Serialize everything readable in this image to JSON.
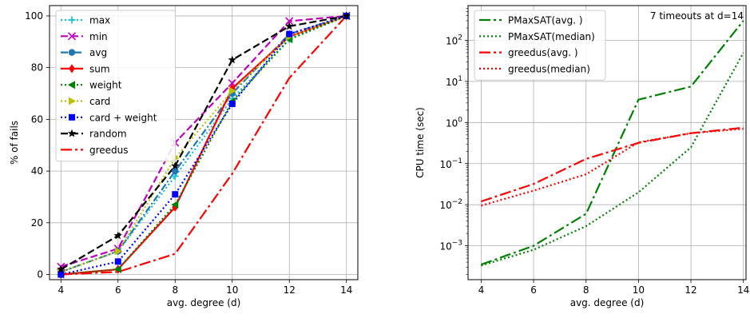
{
  "chart_data": [
    {
      "type": "line",
      "title": "",
      "xlabel": "avg. degree (d)",
      "ylabel": "% of fails",
      "xlim": [
        3.6,
        14.4
      ],
      "ylim": [
        -2,
        104
      ],
      "yscale": "linear",
      "xticks": [
        4,
        6,
        8,
        10,
        12,
        14
      ],
      "yticks": [
        0,
        20,
        40,
        60,
        80,
        100
      ],
      "grid": true,
      "legend_position": "top-left",
      "x": [
        4,
        6,
        8,
        10,
        12,
        14
      ],
      "series": [
        {
          "name": "max",
          "color": "#17becf",
          "dash": "2,3",
          "marker": "plus",
          "values": [
            1,
            9,
            38,
            68,
            91,
            100
          ]
        },
        {
          "name": "min",
          "color": "#bf00bf",
          "dash": "9,4",
          "marker": "x",
          "values": [
            3,
            10,
            51,
            74,
            98,
            100
          ]
        },
        {
          "name": "avg",
          "color": "#1f77b4",
          "dash": "9,3,2,3",
          "marker": "circle",
          "values": [
            1,
            9,
            40,
            70,
            93,
            100
          ]
        },
        {
          "name": "sum",
          "color": "#ff0000",
          "dash": "",
          "marker": "diamond",
          "values": [
            0,
            2,
            26,
            72,
            92,
            100
          ]
        },
        {
          "name": "weight",
          "color": "#008000",
          "dash": "2,3",
          "marker": "triangle-left",
          "values": [
            0,
            2,
            27,
            67,
            91,
            100
          ]
        },
        {
          "name": "card",
          "color": "#bfbf00",
          "dash": "2,3",
          "marker": "triangle-right",
          "values": [
            1,
            9,
            45,
            71,
            92,
            100
          ]
        },
        {
          "name": "card + weight",
          "color": "#0000ff",
          "dash": "2,3",
          "marker": "square",
          "values": [
            0,
            5,
            31,
            66,
            93,
            100
          ]
        },
        {
          "name": "random",
          "color": "#000000",
          "dash": "9,4",
          "marker": "star",
          "values": [
            2,
            15,
            42,
            83,
            96,
            100
          ]
        },
        {
          "name": "greedus",
          "color": "#ff0000",
          "dash": "14,4,3,4",
          "marker": "none",
          "values": [
            0,
            1,
            8,
            39,
            76,
            100
          ]
        }
      ]
    },
    {
      "type": "line",
      "title": "",
      "annotation": "7 timeouts at d=14",
      "xlabel": "avg. degree (d)",
      "ylabel": "CPU time (sec)",
      "xlim": [
        3.5,
        14.1
      ],
      "ylim": [
        0.00015,
        700
      ],
      "yscale": "log",
      "xticks": [
        4,
        6,
        8,
        10,
        12,
        14
      ],
      "yticks": [
        0.001,
        0.01,
        0.1,
        1,
        10,
        100
      ],
      "ytick_labels": [
        {
          "base": "10",
          "exp": "−3"
        },
        {
          "base": "10",
          "exp": "−2"
        },
        {
          "base": "10",
          "exp": "−1"
        },
        {
          "base": "10",
          "exp": "0"
        },
        {
          "base": "10",
          "exp": "1"
        },
        {
          "base": "10",
          "exp": "2"
        }
      ],
      "grid": true,
      "legend_position": "top-left",
      "x": [
        4,
        6,
        8,
        10,
        12,
        14
      ],
      "series": [
        {
          "name": "PMaxSAT(avg. )",
          "color": "#008000",
          "dash": "14,4,3,4",
          "values": [
            0.00035,
            0.001,
            0.006,
            3.6,
            7.5,
            300
          ]
        },
        {
          "name": "PMaxSAT(median)",
          "color": "#008000",
          "dash": "2,3",
          "values": [
            0.00033,
            0.0008,
            0.003,
            0.02,
            0.25,
            50
          ]
        },
        {
          "name": "greedus(avg. )",
          "color": "#ff0000",
          "dash": "14,4,3,4",
          "values": [
            0.012,
            0.032,
            0.13,
            0.32,
            0.55,
            0.75
          ]
        },
        {
          "name": "greedus(median)",
          "color": "#ff0000",
          "dash": "2,3",
          "values": [
            0.0095,
            0.022,
            0.055,
            0.33,
            0.55,
            0.7
          ]
        }
      ]
    }
  ]
}
